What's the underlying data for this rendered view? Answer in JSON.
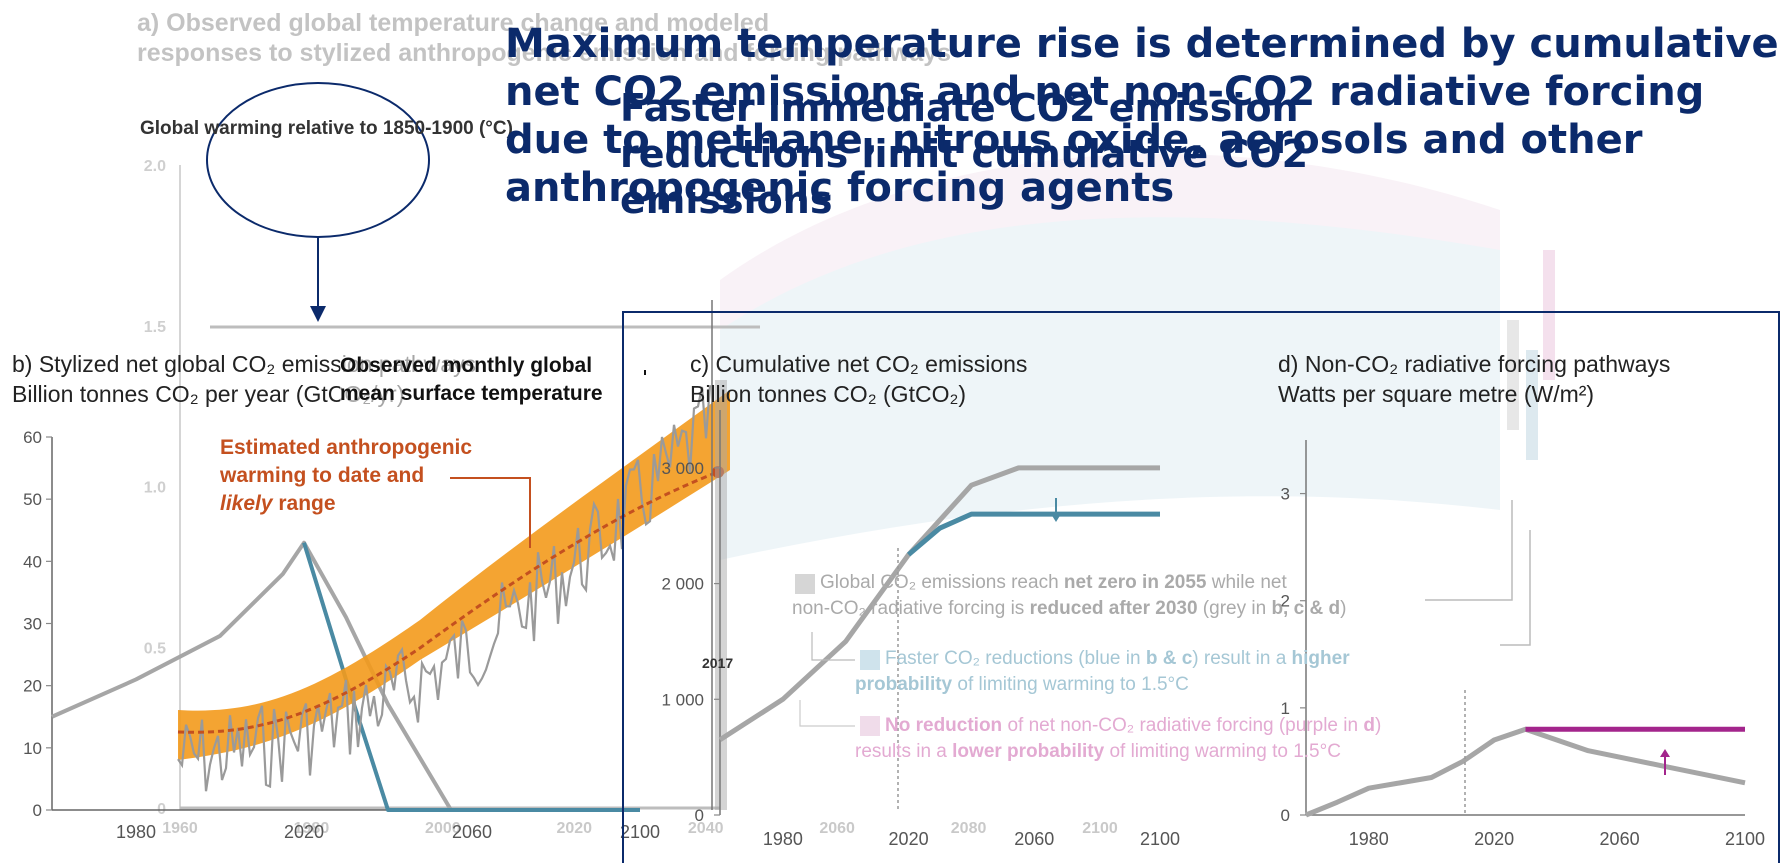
{
  "header": {
    "title_main": "Maximum temperature rise is determined by cumulative net CO2 emissions and net non-CO2 radiative forcing due to methane, nitrous oxide, aerosols and other anthropogenic forcing agents",
    "title_sub": "Faster immediate CO2 emission reductions limit cumulative CO2 emissions"
  },
  "panel_a": {
    "title_line1": "a) Observed global temperature change and modeled",
    "title_line2": "responses to stylized anthropogenic emission and forcing pathways",
    "ylabel": "Global warming relative to 1850-1900 (°C)",
    "observed_label_line1": "Observed monthly global",
    "observed_label_line2": "mean surface temperature",
    "anthro_label_line1": "Estimated anthropogenic",
    "anthro_label_line2": "warming to date and",
    "anthro_label_line3_em": "likely",
    "anthro_label_line3_rest": " range",
    "year_label": "2017"
  },
  "panel_b": {
    "title_line1": "b) Stylized net global CO₂ emission pathways",
    "title_line2": "Billion tonnes CO₂ per year (GtCO₂/yr)"
  },
  "panel_c": {
    "title_line1": "c) Cumulative net CO₂ emissions",
    "title_line2": "Billion tonnes CO₂ (GtCO₂)"
  },
  "panel_d": {
    "title_line1": "d) Non-CO₂ radiative forcing pathways",
    "title_line2": "Watts per square metre (W/m²)"
  },
  "legend": {
    "item1_a": "Global CO₂ emissions reach ",
    "item1_b": "net zero in 2055",
    "item1_c": " while net",
    "item1_d": "non-CO₂ radiative forcing is ",
    "item1_e": "reduced after 2030",
    "item1_f": " (grey in ",
    "item1_g": "b, c & d",
    "item1_h": ")",
    "item2_a": "Faster CO₂ reductions (blue in ",
    "item2_b": "b & c",
    "item2_c": ") result in a ",
    "item2_d": "higher",
    "item2_e": "probability",
    "item2_f": " of limiting warming to 1.5°C",
    "item3_a": "No reduction",
    "item3_b": " of net non-CO₂ radiative forcing (purple in ",
    "item3_c": "d",
    "item3_d": ")",
    "item3_e": "results in a ",
    "item3_f": "lower probability",
    "item3_g": " of limiting warming to 1.5°C"
  },
  "colors": {
    "title_blue": "#0b2a6b",
    "observed_grey": "#9a9a9a",
    "anthro_orange": "#f39a1c",
    "anthro_line": "#c4501f",
    "blue_pathway": "#4a8aa3",
    "purple_pathway": "#a3258c",
    "plume_blue": "#cfe3ec",
    "plume_pink": "#f0dcea"
  },
  "chart_data": [
    {
      "type": "line",
      "panel": "a",
      "ylabel": "Global warming relative to 1850-1900 (°C)",
      "ylim": [
        0,
        2.0
      ],
      "yticks": [
        "2.0",
        "1.5",
        "1.0",
        "0.5",
        "0"
      ],
      "xlim": [
        1960,
        2100
      ],
      "xticks": [
        "1960",
        "1980",
        "2000",
        "2020",
        "2040",
        "2060",
        "2080",
        "2100"
      ],
      "series": [
        {
          "name": "Estimated anthropogenic warming to date and likely range",
          "x": [
            1960,
            1980,
            2000,
            2017
          ],
          "y": [
            0.3,
            0.45,
            0.75,
            1.0
          ]
        },
        {
          "name": "Observed monthly global mean surface temperature",
          "x": [
            1960,
            1980,
            2000,
            2017
          ],
          "y": [
            0.25,
            0.4,
            0.8,
            1.15
          ]
        }
      ]
    },
    {
      "type": "line",
      "panel": "b",
      "ylim": [
        0,
        60
      ],
      "yticks": [
        "60",
        "50",
        "40",
        "30",
        "20",
        "10",
        "0"
      ],
      "xlim": [
        1960,
        2100
      ],
      "xticks": [
        "1980",
        "2020",
        "2060",
        "2100"
      ],
      "series": [
        {
          "color_key": "grey",
          "x": [
            1960,
            1980,
            2000,
            2015,
            2020,
            2030,
            2040,
            2055,
            2060,
            2100
          ],
          "y": [
            15,
            21,
            28,
            38,
            43,
            31,
            17,
            0,
            0,
            0
          ]
        },
        {
          "color_key": "blue",
          "x": [
            2020,
            2030,
            2040,
            2050,
            2100
          ],
          "y": [
            43,
            21,
            0,
            0,
            0
          ]
        }
      ]
    },
    {
      "type": "line",
      "panel": "c",
      "ylim": [
        0,
        3500
      ],
      "yticks": [
        "3 000",
        "2 000",
        "1 000",
        "0"
      ],
      "xlim": [
        1960,
        2100
      ],
      "xticks": [
        "1980",
        "2020",
        "2060",
        "2100"
      ],
      "series": [
        {
          "color_key": "grey",
          "x": [
            1960,
            1980,
            2000,
            2020,
            2040,
            2055,
            2100
          ],
          "y": [
            650,
            1000,
            1500,
            2250,
            2850,
            3000,
            3000
          ]
        },
        {
          "color_key": "blue",
          "x": [
            2020,
            2030,
            2040,
            2100
          ],
          "y": [
            2250,
            2480,
            2600,
            2600
          ]
        }
      ]
    },
    {
      "type": "line",
      "panel": "d",
      "ylim": [
        0,
        3.5
      ],
      "yticks": [
        "3",
        "2",
        "1",
        "0"
      ],
      "xlim": [
        1960,
        2100
      ],
      "xticks": [
        "1980",
        "2020",
        "2060",
        "2100"
      ],
      "series": [
        {
          "color_key": "grey",
          "x": [
            1960,
            1970,
            1980,
            1990,
            2000,
            2010,
            2020,
            2030,
            2050,
            2075,
            2100
          ],
          "y": [
            0,
            0.12,
            0.25,
            0.3,
            0.35,
            0.5,
            0.7,
            0.8,
            0.6,
            0.45,
            0.3
          ]
        },
        {
          "color_key": "purple",
          "x": [
            2030,
            2100
          ],
          "y": [
            0.8,
            0.8
          ]
        }
      ]
    }
  ]
}
